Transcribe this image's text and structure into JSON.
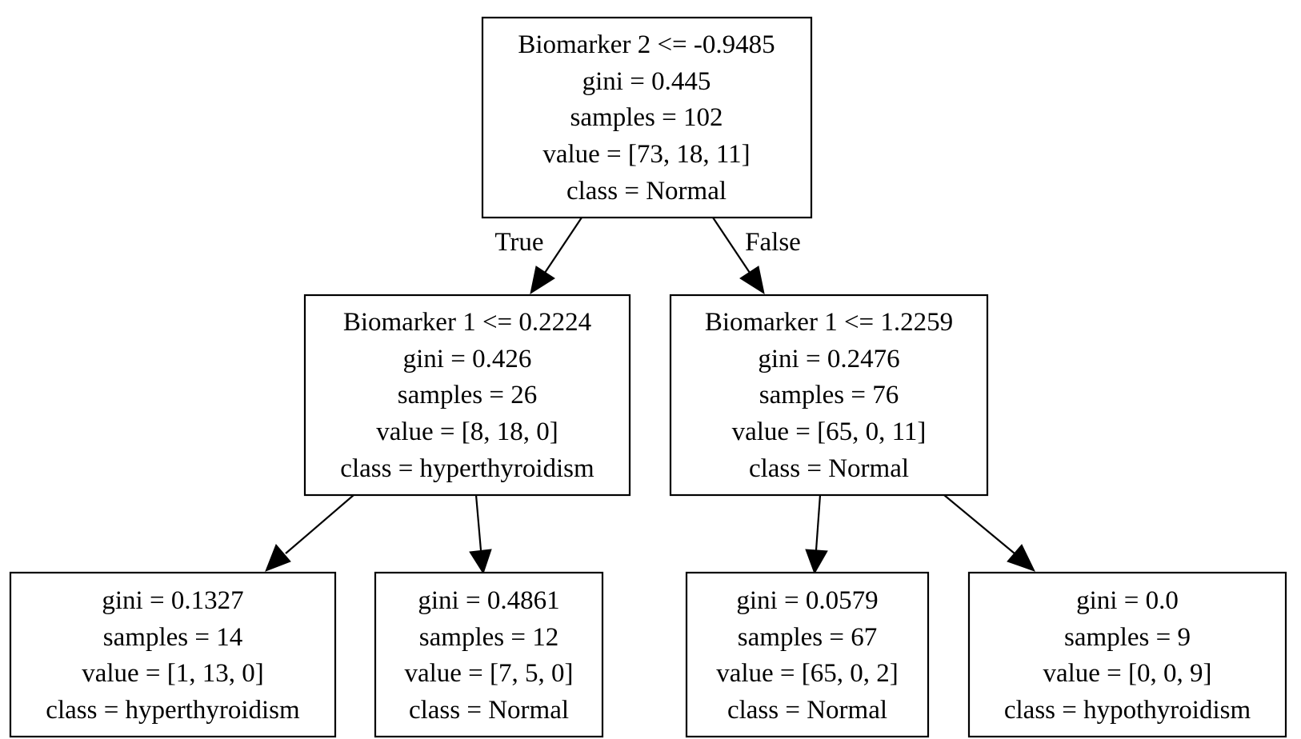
{
  "tree": {
    "root": {
      "split": "Biomarker 2 <= -0.9485",
      "gini": "gini = 0.445",
      "samples": "samples = 102",
      "value": "value = [73, 18, 11]",
      "class": "class = Normal"
    },
    "left": {
      "split": "Biomarker 1 <= 0.2224",
      "gini": "gini = 0.426",
      "samples": "samples = 26",
      "value": "value = [8, 18, 0]",
      "class": "class = hyperthyroidism"
    },
    "right": {
      "split": "Biomarker 1 <= 1.2259",
      "gini": "gini = 0.2476",
      "samples": "samples = 76",
      "value": "value = [65, 0, 11]",
      "class": "class = Normal"
    },
    "leaf_ll": {
      "gini": "gini = 0.1327",
      "samples": "samples = 14",
      "value": "value = [1, 13, 0]",
      "class": "class = hyperthyroidism"
    },
    "leaf_lr": {
      "gini": "gini = 0.4861",
      "samples": "samples = 12",
      "value": "value = [7, 5, 0]",
      "class": "class = Normal"
    },
    "leaf_rl": {
      "gini": "gini = 0.0579",
      "samples": "samples = 67",
      "value": "value = [65, 0, 2]",
      "class": "class = Normal"
    },
    "leaf_rr": {
      "gini": "gini = 0.0",
      "samples": "samples = 9",
      "value": "value = [0, 0, 9]",
      "class": "class = hypothyroidism"
    }
  },
  "edges": {
    "true_label": "True",
    "false_label": "False"
  }
}
